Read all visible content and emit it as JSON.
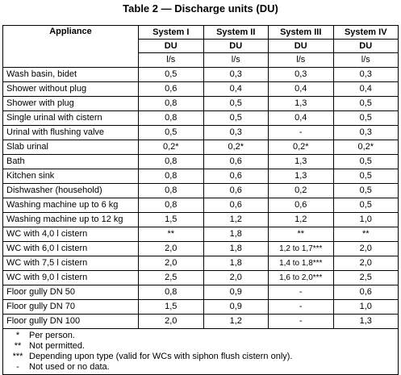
{
  "title": "Table 2 — Discharge units (DU)",
  "header": {
    "appliance": "Appliance",
    "systems": [
      "System I",
      "System II",
      "System III",
      "System IV"
    ],
    "unit_label": "DU",
    "unit": "l/s"
  },
  "rows": [
    {
      "appliance": "Wash basin, bidet",
      "values": [
        "0,5",
        "0,3",
        "0,3",
        "0,3"
      ]
    },
    {
      "appliance": "Shower without plug",
      "values": [
        "0,6",
        "0,4",
        "0,4",
        "0,4"
      ]
    },
    {
      "appliance": "Shower with plug",
      "values": [
        "0,8",
        "0,5",
        "1,3",
        "0,5"
      ]
    },
    {
      "appliance": "Single urinal with cistern",
      "values": [
        "0,8",
        "0,5",
        "0,4",
        "0,5"
      ]
    },
    {
      "appliance": "Urinal with flushing valve",
      "values": [
        "0,5",
        "0,3",
        "-",
        "0,3"
      ]
    },
    {
      "appliance": "Slab urinal",
      "values": [
        "0,2*",
        "0,2*",
        "0,2*",
        "0,2*"
      ]
    },
    {
      "appliance": "Bath",
      "values": [
        "0,8",
        "0,6",
        "1,3",
        "0,5"
      ]
    },
    {
      "appliance": "Kitchen sink",
      "values": [
        "0,8",
        "0,6",
        "1,3",
        "0,5"
      ]
    },
    {
      "appliance": "Dishwasher (household)",
      "values": [
        "0,8",
        "0,6",
        "0,2",
        "0,5"
      ]
    },
    {
      "appliance": "Washing machine up to 6 kg",
      "values": [
        "0,8",
        "0,6",
        "0,6",
        "0,5"
      ]
    },
    {
      "appliance": "Washing machine up to 12 kg",
      "values": [
        "1,5",
        "1,2",
        "1,2",
        "1,0"
      ]
    },
    {
      "appliance": "WC with 4,0 l cistern",
      "values": [
        "**",
        "1,8",
        "**",
        "**"
      ]
    },
    {
      "appliance": "WC with 6,0 l cistern",
      "values": [
        "2,0",
        "1,8",
        "1,2 to 1,7***",
        "2,0"
      ]
    },
    {
      "appliance": "WC with 7,5 l cistern",
      "values": [
        "2,0",
        "1,8",
        "1,4 to 1,8***",
        "2,0"
      ]
    },
    {
      "appliance": "WC with 9,0 l cistern",
      "values": [
        "2,5",
        "2,0",
        "1,6 to 2,0***",
        "2,5"
      ]
    },
    {
      "appliance": "Floor gully DN 50",
      "values": [
        "0,8",
        "0,9",
        "-",
        "0,6"
      ]
    },
    {
      "appliance": "Floor gully DN 70",
      "values": [
        "1,5",
        "0,9",
        "-",
        "1,0"
      ]
    },
    {
      "appliance": "Floor gully DN 100",
      "values": [
        "2,0",
        "1,2",
        "-",
        "1,3"
      ]
    }
  ],
  "notes": [
    {
      "symbol": "*",
      "text": "Per person."
    },
    {
      "symbol": "**",
      "text": "Not permitted."
    },
    {
      "symbol": "***",
      "text": "Depending upon type (valid for WCs  with siphon flush cistern only)."
    },
    {
      "symbol": "-",
      "text": "Not used or no data."
    }
  ]
}
